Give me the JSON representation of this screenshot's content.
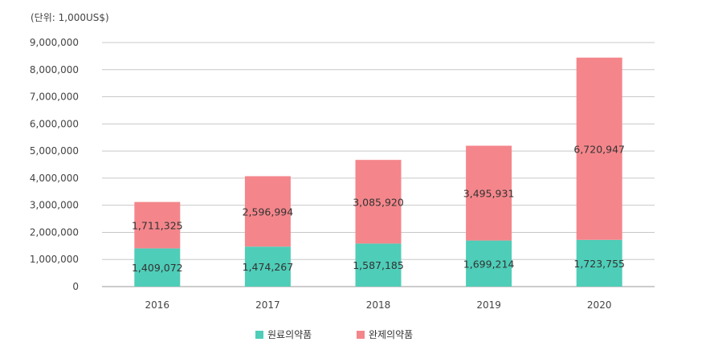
{
  "chart_data": {
    "type": "bar",
    "stacked": true,
    "unit_label": "(단위: 1,000US$)",
    "categories": [
      "2016",
      "2017",
      "2018",
      "2019",
      "2020"
    ],
    "series": [
      {
        "name": "원료의약품",
        "color": "#4ecdb8",
        "values": [
          1409072,
          1474267,
          1587185,
          1699214,
          1723755
        ],
        "labels": [
          "1,409,072",
          "1,474,267",
          "1,587,185",
          "1,699,214",
          "1,723,755"
        ]
      },
      {
        "name": "완제의약품",
        "color": "#f4868b",
        "values": [
          1711325,
          2596994,
          3085920,
          3495931,
          6720947
        ],
        "labels": [
          "1,711,325",
          "2,596,994",
          "3,085,920",
          "3,495,931",
          "6,720,947"
        ]
      }
    ],
    "ylim": [
      0,
      9000000
    ],
    "yticks": [
      "0",
      "1,000,000",
      "2,000,000",
      "3,000,000",
      "4,000,000",
      "5,000,000",
      "6,000,000",
      "7,000,000",
      "8,000,000",
      "9,000,000"
    ],
    "grid": true,
    "legend": "bottom-center"
  }
}
